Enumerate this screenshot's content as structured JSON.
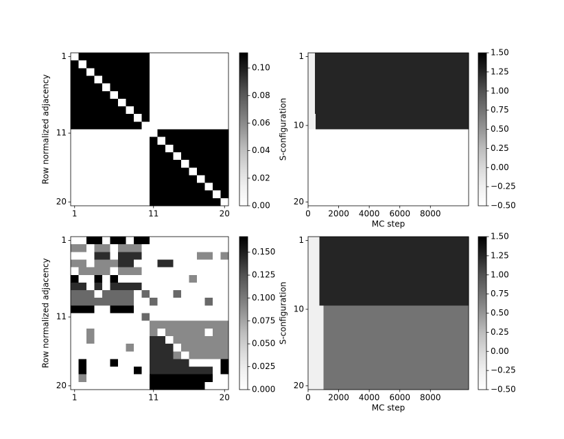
{
  "chart_data": [
    {
      "type": "heatmap",
      "ylabel": "Row normalized adjacency",
      "colormap": "Greys",
      "yaxis_inverted": true,
      "xlim": [
        0.5,
        20.5
      ],
      "ylim": [
        0.5,
        20.5
      ],
      "xticks": [
        1,
        11,
        20
      ],
      "yticks": [
        1,
        11,
        20
      ],
      "clim": [
        0,
        0.111
      ],
      "cticks": [
        {
          "value": 0,
          "label": "0.00"
        },
        {
          "value": 0.02,
          "label": "0.02"
        },
        {
          "value": 0.04,
          "label": "0.04"
        },
        {
          "value": 0.06,
          "label": "0.06"
        },
        {
          "value": 0.08,
          "label": "0.08"
        },
        {
          "value": 0.1,
          "label": "0.10"
        }
      ],
      "matrix": [
        [
          0,
          0.111,
          0.111,
          0.111,
          0.111,
          0.111,
          0.111,
          0.111,
          0.111,
          0.111,
          0,
          0,
          0,
          0,
          0,
          0,
          0,
          0,
          0,
          0
        ],
        [
          0.111,
          0,
          0.111,
          0.111,
          0.111,
          0.111,
          0.111,
          0.111,
          0.111,
          0.111,
          0,
          0,
          0,
          0,
          0,
          0,
          0,
          0,
          0,
          0
        ],
        [
          0.111,
          0.111,
          0,
          0.111,
          0.111,
          0.111,
          0.111,
          0.111,
          0.111,
          0.111,
          0,
          0,
          0,
          0,
          0,
          0,
          0,
          0,
          0,
          0
        ],
        [
          0.111,
          0.111,
          0.111,
          0,
          0.111,
          0.111,
          0.111,
          0.111,
          0.111,
          0.111,
          0,
          0,
          0,
          0,
          0,
          0,
          0,
          0,
          0,
          0
        ],
        [
          0.111,
          0.111,
          0.111,
          0.111,
          0,
          0.111,
          0.111,
          0.111,
          0.111,
          0.111,
          0,
          0,
          0,
          0,
          0,
          0,
          0,
          0,
          0,
          0
        ],
        [
          0.111,
          0.111,
          0.111,
          0.111,
          0.111,
          0,
          0.111,
          0.111,
          0.111,
          0.111,
          0,
          0,
          0,
          0,
          0,
          0,
          0,
          0,
          0,
          0
        ],
        [
          0.111,
          0.111,
          0.111,
          0.111,
          0.111,
          0.111,
          0,
          0.111,
          0.111,
          0.111,
          0,
          0,
          0,
          0,
          0,
          0,
          0,
          0,
          0,
          0
        ],
        [
          0.111,
          0.111,
          0.111,
          0.111,
          0.111,
          0.111,
          0.111,
          0,
          0.111,
          0.111,
          0,
          0,
          0,
          0,
          0,
          0,
          0,
          0,
          0,
          0
        ],
        [
          0.111,
          0.111,
          0.111,
          0.111,
          0.111,
          0.111,
          0.111,
          0.111,
          0,
          0.111,
          0,
          0,
          0,
          0,
          0,
          0,
          0,
          0,
          0,
          0
        ],
        [
          0.111,
          0.111,
          0.111,
          0.111,
          0.111,
          0.111,
          0.111,
          0.111,
          0.111,
          0,
          0,
          0,
          0,
          0,
          0,
          0,
          0,
          0,
          0,
          0
        ],
        [
          0,
          0,
          0,
          0,
          0,
          0,
          0,
          0,
          0,
          0,
          0,
          0.111,
          0.111,
          0.111,
          0.111,
          0.111,
          0.111,
          0.111,
          0.111,
          0.111
        ],
        [
          0,
          0,
          0,
          0,
          0,
          0,
          0,
          0,
          0,
          0,
          0.111,
          0,
          0.111,
          0.111,
          0.111,
          0.111,
          0.111,
          0.111,
          0.111,
          0.111
        ],
        [
          0,
          0,
          0,
          0,
          0,
          0,
          0,
          0,
          0,
          0,
          0.111,
          0.111,
          0,
          0.111,
          0.111,
          0.111,
          0.111,
          0.111,
          0.111,
          0.111
        ],
        [
          0,
          0,
          0,
          0,
          0,
          0,
          0,
          0,
          0,
          0,
          0.111,
          0.111,
          0.111,
          0,
          0.111,
          0.111,
          0.111,
          0.111,
          0.111,
          0.111
        ],
        [
          0,
          0,
          0,
          0,
          0,
          0,
          0,
          0,
          0,
          0,
          0.111,
          0.111,
          0.111,
          0.111,
          0,
          0.111,
          0.111,
          0.111,
          0.111,
          0.111
        ],
        [
          0,
          0,
          0,
          0,
          0,
          0,
          0,
          0,
          0,
          0,
          0.111,
          0.111,
          0.111,
          0.111,
          0.111,
          0,
          0.111,
          0.111,
          0.111,
          0.111
        ],
        [
          0,
          0,
          0,
          0,
          0,
          0,
          0,
          0,
          0,
          0,
          0.111,
          0.111,
          0.111,
          0.111,
          0.111,
          0.111,
          0,
          0.111,
          0.111,
          0.111
        ],
        [
          0,
          0,
          0,
          0,
          0,
          0,
          0,
          0,
          0,
          0,
          0.111,
          0.111,
          0.111,
          0.111,
          0.111,
          0.111,
          0.111,
          0,
          0.111,
          0.111
        ],
        [
          0,
          0,
          0,
          0,
          0,
          0,
          0,
          0,
          0,
          0,
          0.111,
          0.111,
          0.111,
          0.111,
          0.111,
          0.111,
          0.111,
          0.111,
          0,
          0.111
        ],
        [
          0,
          0,
          0,
          0,
          0,
          0,
          0,
          0,
          0,
          0,
          0.111,
          0.111,
          0.111,
          0.111,
          0.111,
          0.111,
          0.111,
          0.111,
          0.111,
          0
        ]
      ]
    },
    {
      "type": "heatmap",
      "ylabel": "S-configuration",
      "xlabel": "MC step",
      "colormap": "Greys",
      "yaxis_inverted": true,
      "xlim": [
        0,
        10500
      ],
      "ylim": [
        0.5,
        20.5
      ],
      "xticks": [
        0,
        2000,
        4000,
        6000,
        8000
      ],
      "yticks": [
        1,
        10,
        20
      ],
      "xbins": [
        0,
        450,
        500,
        10500
      ],
      "clim": [
        -0.5,
        1.5
      ],
      "cticks": [
        {
          "value": -0.5,
          "label": "−0.50"
        },
        {
          "value": -0.25,
          "label": "−0.25"
        },
        {
          "value": 0,
          "label": "0.00"
        },
        {
          "value": 0.25,
          "label": "0.25"
        },
        {
          "value": 0.5,
          "label": "0.50"
        },
        {
          "value": 0.75,
          "label": "0.75"
        },
        {
          "value": 1,
          "label": "1.00"
        },
        {
          "value": 1.25,
          "label": "1.25"
        },
        {
          "value": 1.5,
          "label": "1.50"
        }
      ],
      "matrix": [
        [
          -0.25,
          1.25,
          1.25
        ],
        [
          -0.25,
          1.25,
          1.25
        ],
        [
          -0.25,
          1.25,
          1.25
        ],
        [
          -0.25,
          1.25,
          1.25
        ],
        [
          -0.25,
          1.25,
          1.25
        ],
        [
          -0.25,
          1.25,
          1.25
        ],
        [
          -0.25,
          1.25,
          1.25
        ],
        [
          -0.25,
          1.25,
          1.25
        ],
        [
          -0.25,
          -0.25,
          1.25
        ],
        [
          -0.25,
          -0.25,
          1.25
        ],
        [
          -0.5,
          -0.5,
          -0.5
        ],
        [
          -0.5,
          -0.5,
          -0.5
        ],
        [
          -0.5,
          -0.5,
          -0.5
        ],
        [
          -0.5,
          -0.5,
          -0.5
        ],
        [
          -0.5,
          -0.5,
          -0.5
        ],
        [
          -0.5,
          -0.5,
          -0.5
        ],
        [
          -0.5,
          -0.5,
          -0.5
        ],
        [
          -0.5,
          -0.5,
          -0.5
        ],
        [
          -0.5,
          -0.5,
          -0.5
        ],
        [
          -0.5,
          -0.5,
          -0.5
        ]
      ]
    },
    {
      "type": "heatmap",
      "ylabel": "Row normalized adjacency",
      "colormap": "Greys",
      "yaxis_inverted": true,
      "xlim": [
        0.5,
        20.5
      ],
      "ylim": [
        0.5,
        20.5
      ],
      "xticks": [
        1,
        11,
        20
      ],
      "yticks": [
        1,
        11,
        20
      ],
      "clim": [
        0,
        0.167
      ],
      "cticks": [
        {
          "value": 0,
          "label": "0.000"
        },
        {
          "value": 0.025,
          "label": "0.025"
        },
        {
          "value": 0.05,
          "label": "0.050"
        },
        {
          "value": 0.075,
          "label": "0.075"
        },
        {
          "value": 0.1,
          "label": "0.100"
        },
        {
          "value": 0.125,
          "label": "0.125"
        },
        {
          "value": 0.15,
          "label": "0.150"
        }
      ],
      "matrix": [
        [
          0,
          0,
          0.167,
          0.167,
          0,
          0.167,
          0.167,
          0,
          0.167,
          0.167,
          0,
          0,
          0,
          0,
          0,
          0,
          0,
          0,
          0,
          0
        ],
        [
          0.091,
          0.091,
          0,
          0.091,
          0.091,
          0,
          0.091,
          0.091,
          0.091,
          0,
          0,
          0,
          0,
          0,
          0,
          0,
          0,
          0,
          0,
          0
        ],
        [
          0,
          0,
          0,
          0.143,
          0.143,
          0,
          0.143,
          0.143,
          0.143,
          0,
          0,
          0,
          0,
          0,
          0,
          0,
          0.091,
          0.091,
          0,
          0.091
        ],
        [
          0.091,
          0.091,
          0,
          0.091,
          0.091,
          0.091,
          0.143,
          0.143,
          0,
          0,
          0,
          0.143,
          0.143,
          0,
          0,
          0,
          0,
          0,
          0,
          0
        ],
        [
          0,
          0.091,
          0.091,
          0.091,
          0.091,
          0,
          0.091,
          0.091,
          0.091,
          0,
          0,
          0,
          0,
          0,
          0,
          0,
          0,
          0,
          0,
          0
        ],
        [
          0.167,
          0,
          0,
          0.167,
          0,
          0.167,
          0,
          0,
          0,
          0,
          0,
          0,
          0,
          0,
          0,
          0.091,
          0,
          0,
          0,
          0
        ],
        [
          0.143,
          0.143,
          0,
          0.143,
          0,
          0.143,
          0.143,
          0.143,
          0.143,
          0,
          0,
          0,
          0,
          0,
          0,
          0,
          0,
          0,
          0,
          0
        ],
        [
          0.111,
          0.111,
          0.111,
          0,
          0.111,
          0.111,
          0.111,
          0.111,
          0,
          0.111,
          0,
          0,
          0,
          0.111,
          0,
          0,
          0,
          0,
          0,
          0
        ],
        [
          0.111,
          0.111,
          0.111,
          0.111,
          0.111,
          0.111,
          0.111,
          0.111,
          0,
          0,
          0.111,
          0,
          0,
          0,
          0,
          0,
          0,
          0.111,
          0,
          0
        ],
        [
          0.167,
          0.167,
          0.167,
          0,
          0,
          0.167,
          0.167,
          0.167,
          0,
          0,
          0,
          0,
          0,
          0,
          0,
          0,
          0,
          0,
          0,
          0
        ],
        [
          0,
          0,
          0,
          0,
          0,
          0,
          0,
          0,
          0,
          0.111,
          0,
          0,
          0,
          0,
          0,
          0,
          0,
          0,
          0,
          0
        ],
        [
          0,
          0,
          0,
          0,
          0,
          0,
          0,
          0,
          0,
          0,
          0.091,
          0.091,
          0.091,
          0.091,
          0.091,
          0.091,
          0.091,
          0.091,
          0.091,
          0.091
        ],
        [
          0,
          0,
          0.091,
          0,
          0,
          0,
          0,
          0,
          0,
          0,
          0.091,
          0,
          0.091,
          0.091,
          0.091,
          0.091,
          0.091,
          0,
          0.091,
          0.091
        ],
        [
          0,
          0,
          0.091,
          0,
          0,
          0,
          0,
          0,
          0,
          0,
          0.143,
          0.143,
          0,
          0.091,
          0.091,
          0.091,
          0.091,
          0.091,
          0.091,
          0.091
        ],
        [
          0,
          0,
          0,
          0,
          0,
          0,
          0,
          0.091,
          0,
          0,
          0.143,
          0.143,
          0.143,
          0,
          0.091,
          0.091,
          0.091,
          0.091,
          0.091,
          0.091
        ],
        [
          0,
          0,
          0,
          0,
          0,
          0,
          0,
          0,
          0,
          0,
          0.143,
          0.143,
          0.143,
          0.091,
          0,
          0.091,
          0.091,
          0.091,
          0.091,
          0.091
        ],
        [
          0,
          0.167,
          0,
          0,
          0,
          0.167,
          0,
          0,
          0,
          0,
          0.143,
          0.143,
          0.143,
          0.143,
          0.143,
          0,
          0,
          0,
          0,
          0.167
        ],
        [
          0,
          0.167,
          0,
          0,
          0,
          0,
          0,
          0,
          0.167,
          0,
          0.143,
          0.143,
          0.143,
          0.143,
          0.143,
          0.143,
          0.143,
          0.143,
          0,
          0.167
        ],
        [
          0,
          0.091,
          0,
          0,
          0,
          0,
          0,
          0,
          0,
          0,
          0.167,
          0.167,
          0.167,
          0.167,
          0.167,
          0.167,
          0.167,
          0.167,
          0,
          0
        ],
        [
          0,
          0,
          0,
          0,
          0,
          0,
          0,
          0,
          0,
          0,
          0.167,
          0.167,
          0.167,
          0.167,
          0.167,
          0.167,
          0.167,
          0,
          0,
          0
        ]
      ]
    },
    {
      "type": "heatmap",
      "ylabel": "S-configuration",
      "xlabel": "MC step",
      "colormap": "Greys",
      "yaxis_inverted": true,
      "xlim": [
        0,
        10500
      ],
      "ylim": [
        0.5,
        20.5
      ],
      "xticks": [
        0,
        2000,
        4000,
        6000,
        8000
      ],
      "yticks": [
        1,
        10,
        20
      ],
      "xbins": [
        0,
        750,
        1000,
        10500
      ],
      "clim": [
        -0.5,
        1.5
      ],
      "cticks": [
        {
          "value": -0.5,
          "label": "−0.50"
        },
        {
          "value": -0.25,
          "label": "−0.25"
        },
        {
          "value": 0,
          "label": "0.00"
        },
        {
          "value": 0.25,
          "label": "0.25"
        },
        {
          "value": 0.5,
          "label": "0.50"
        },
        {
          "value": 0.75,
          "label": "0.75"
        },
        {
          "value": 1,
          "label": "1.00"
        },
        {
          "value": 1.25,
          "label": "1.25"
        },
        {
          "value": 1.5,
          "label": "1.50"
        }
      ],
      "matrix": [
        [
          -0.25,
          1.25,
          1.25
        ],
        [
          -0.25,
          1.25,
          1.25
        ],
        [
          -0.25,
          1.25,
          1.25
        ],
        [
          -0.25,
          1.25,
          1.25
        ],
        [
          -0.25,
          1.25,
          1.25
        ],
        [
          -0.25,
          1.25,
          1.25
        ],
        [
          -0.25,
          1.25,
          1.25
        ],
        [
          -0.25,
          1.25,
          1.25
        ],
        [
          -0.25,
          1.25,
          1.25
        ],
        [
          -0.25,
          -0.25,
          0.75
        ],
        [
          -0.25,
          -0.25,
          0.75
        ],
        [
          -0.25,
          -0.25,
          0.75
        ],
        [
          -0.25,
          -0.25,
          0.75
        ],
        [
          -0.25,
          -0.25,
          0.75
        ],
        [
          -0.25,
          -0.25,
          0.75
        ],
        [
          -0.25,
          -0.25,
          0.75
        ],
        [
          -0.25,
          -0.25,
          0.75
        ],
        [
          -0.25,
          -0.25,
          0.75
        ],
        [
          -0.25,
          -0.25,
          0.75
        ],
        [
          -0.25,
          -0.25,
          0.75
        ]
      ]
    }
  ]
}
